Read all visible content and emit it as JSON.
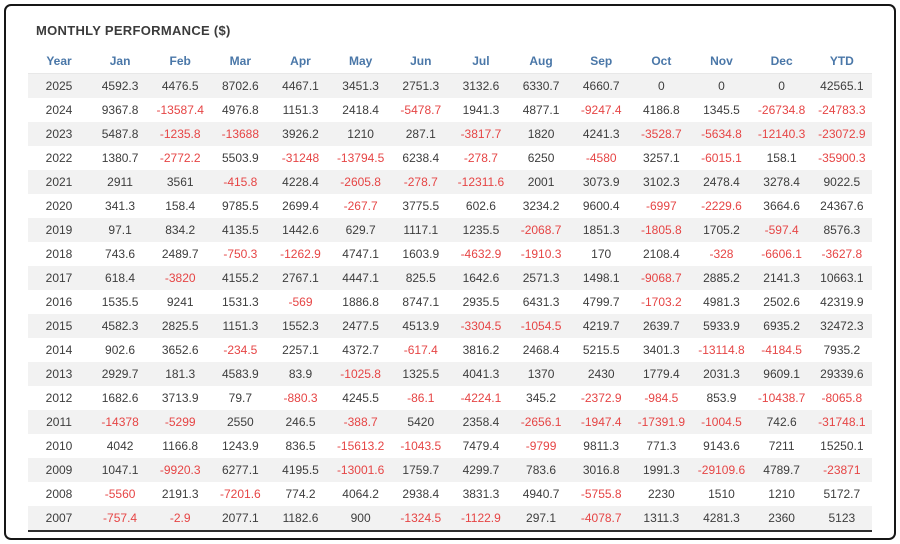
{
  "chart_data": {
    "type": "table",
    "title": "MONTHLY PERFORMANCE ($)",
    "columns": [
      "Year",
      "Jan",
      "Feb",
      "Mar",
      "Apr",
      "May",
      "Jun",
      "Jul",
      "Aug",
      "Sep",
      "Oct",
      "Nov",
      "Dec",
      "YTD"
    ],
    "rows": [
      [
        "2025",
        "4592.3",
        "4476.5",
        "8702.6",
        "4467.1",
        "3451.3",
        "2751.3",
        "3132.6",
        "6330.7",
        "4660.7",
        "0",
        "0",
        "0",
        "42565.1"
      ],
      [
        "2024",
        "9367.8",
        "-13587.4",
        "4976.8",
        "1151.3",
        "2418.4",
        "-5478.7",
        "1941.3",
        "4877.1",
        "-9247.4",
        "4186.8",
        "1345.5",
        "-26734.8",
        "-24783.3"
      ],
      [
        "2023",
        "5487.8",
        "-1235.8",
        "-13688",
        "3926.2",
        "1210",
        "287.1",
        "-3817.7",
        "1820",
        "4241.3",
        "-3528.7",
        "-5634.8",
        "-12140.3",
        "-23072.9"
      ],
      [
        "2022",
        "1380.7",
        "-2772.2",
        "5503.9",
        "-31248",
        "-13794.5",
        "6238.4",
        "-278.7",
        "6250",
        "-4580",
        "3257.1",
        "-6015.1",
        "158.1",
        "-35900.3"
      ],
      [
        "2021",
        "2911",
        "3561",
        "-415.8",
        "4228.4",
        "-2605.8",
        "-278.7",
        "-12311.6",
        "2001",
        "3073.9",
        "3102.3",
        "2478.4",
        "3278.4",
        "9022.5"
      ],
      [
        "2020",
        "341.3",
        "158.4",
        "9785.5",
        "2699.4",
        "-267.7",
        "3775.5",
        "602.6",
        "3234.2",
        "9600.4",
        "-6997",
        "-2229.6",
        "3664.6",
        "24367.6"
      ],
      [
        "2019",
        "97.1",
        "834.2",
        "4135.5",
        "1442.6",
        "629.7",
        "1117.1",
        "1235.5",
        "-2068.7",
        "1851.3",
        "-1805.8",
        "1705.2",
        "-597.4",
        "8576.3"
      ],
      [
        "2018",
        "743.6",
        "2489.7",
        "-750.3",
        "-1262.9",
        "4747.1",
        "1603.9",
        "-4632.9",
        "-1910.3",
        "170",
        "2108.4",
        "-328",
        "-6606.1",
        "-3627.8"
      ],
      [
        "2017",
        "618.4",
        "-3820",
        "4155.2",
        "2767.1",
        "4447.1",
        "825.5",
        "1642.6",
        "2571.3",
        "1498.1",
        "-9068.7",
        "2885.2",
        "2141.3",
        "10663.1"
      ],
      [
        "2016",
        "1535.5",
        "9241",
        "1531.3",
        "-569",
        "1886.8",
        "8747.1",
        "2935.5",
        "6431.3",
        "4799.7",
        "-1703.2",
        "4981.3",
        "2502.6",
        "42319.9"
      ],
      [
        "2015",
        "4582.3",
        "2825.5",
        "1151.3",
        "1552.3",
        "2477.5",
        "4513.9",
        "-3304.5",
        "-1054.5",
        "4219.7",
        "2639.7",
        "5933.9",
        "6935.2",
        "32472.3"
      ],
      [
        "2014",
        "902.6",
        "3652.6",
        "-234.5",
        "2257.1",
        "4372.7",
        "-617.4",
        "3816.2",
        "2468.4",
        "5215.5",
        "3401.3",
        "-13114.8",
        "-4184.5",
        "7935.2"
      ],
      [
        "2013",
        "2929.7",
        "181.3",
        "4583.9",
        "83.9",
        "-1025.8",
        "1325.5",
        "4041.3",
        "1370",
        "2430",
        "1779.4",
        "2031.3",
        "9609.1",
        "29339.6"
      ],
      [
        "2012",
        "1682.6",
        "3713.9",
        "79.7",
        "-880.3",
        "4245.5",
        "-86.1",
        "-4224.1",
        "345.2",
        "-2372.9",
        "-984.5",
        "853.9",
        "-10438.7",
        "-8065.8"
      ],
      [
        "2011",
        "-14378",
        "-5299",
        "2550",
        "246.5",
        "-388.7",
        "5420",
        "2358.4",
        "-2656.1",
        "-1947.4",
        "-17391.9",
        "-1004.5",
        "742.6",
        "-31748.1"
      ],
      [
        "2010",
        "4042",
        "1166.8",
        "1243.9",
        "836.5",
        "-15613.2",
        "-1043.5",
        "7479.4",
        "-9799",
        "9811.3",
        "771.3",
        "9143.6",
        "7211",
        "15250.1"
      ],
      [
        "2009",
        "1047.1",
        "-9920.3",
        "6277.1",
        "4195.5",
        "-13001.6",
        "1759.7",
        "4299.7",
        "783.6",
        "3016.8",
        "1991.3",
        "-29109.6",
        "4789.7",
        "-23871"
      ],
      [
        "2008",
        "-5560",
        "2191.3",
        "-7201.6",
        "774.2",
        "4064.2",
        "2938.4",
        "3831.3",
        "4940.7",
        "-5755.8",
        "2230",
        "1510",
        "1210",
        "5172.7"
      ],
      [
        "2007",
        "-757.4",
        "-2.9",
        "2077.1",
        "1182.6",
        "900",
        "-1324.5",
        "-1122.9",
        "297.1",
        "-4078.7",
        "1311.3",
        "4281.3",
        "2360",
        "5123"
      ]
    ],
    "layout": {
      "striped_rows": true,
      "negative_values_in_red": true,
      "alignment": "center"
    }
  },
  "colors": {
    "negative_value": "#e64545",
    "positive_value": "#3d3d3d",
    "header_text": "#4a77a8",
    "title_text": "#3b3b3b",
    "row_stripe": "#f2f2f2",
    "frame_border": "#161616"
  }
}
